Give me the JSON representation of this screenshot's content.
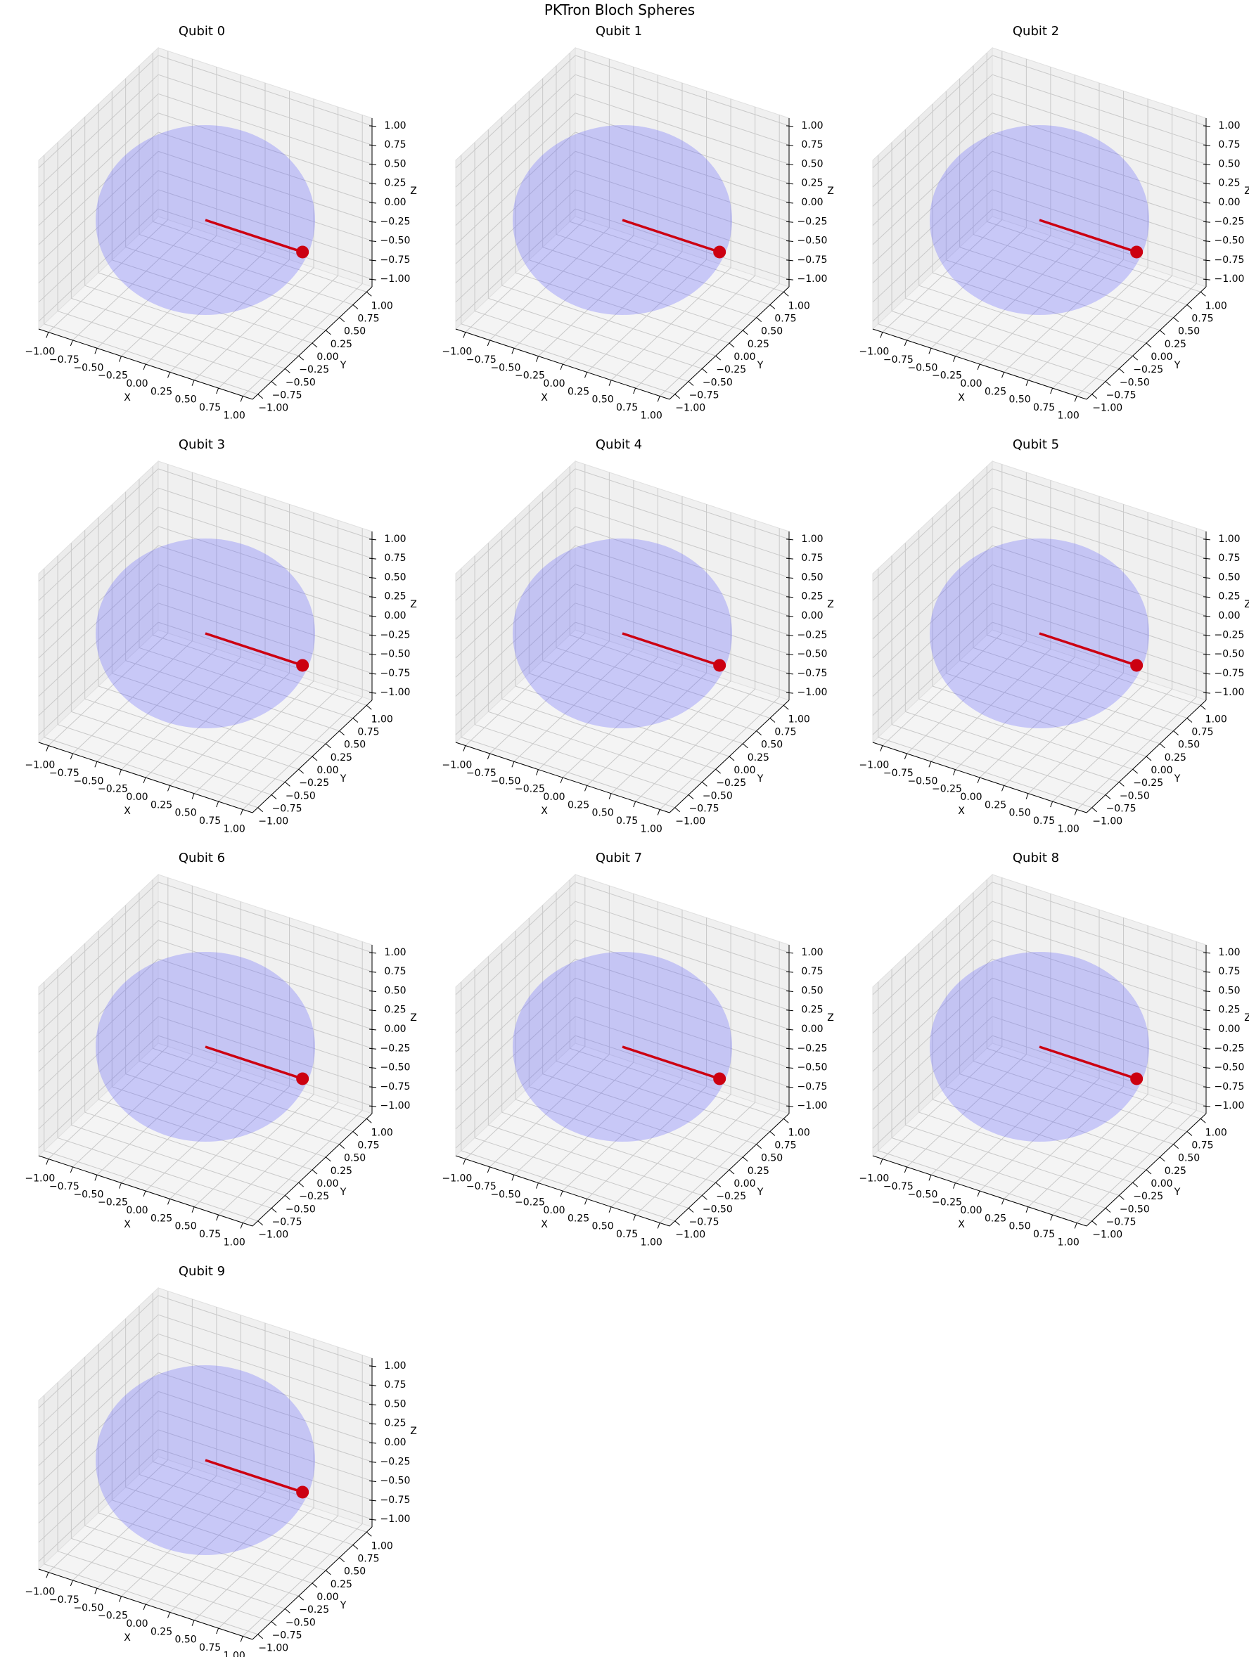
{
  "suptitle": "PKTron Bloch Spheres",
  "colors": {
    "suptitle": "#0a0a8c",
    "sphere": "#6464ff",
    "vector": "#cc0011",
    "grid": "#c9c9c9",
    "pane_left": "#ececec",
    "pane_back": "#f0f0f0",
    "pane_floor": "#f4f4f4"
  },
  "chart_data": [
    {
      "type": "scatter3d",
      "title": "Qubit 0",
      "vector": [
        1,
        0,
        0
      ],
      "xlabel": "X",
      "ylabel": "Y",
      "zlabel": "Z",
      "xlim": [
        -1.1,
        1.1
      ],
      "ylim": [
        -1.1,
        1.1
      ],
      "zlim": [
        -1.1,
        1.1
      ],
      "ticks": [
        -1,
        -0.75,
        -0.5,
        -0.25,
        0,
        0.25,
        0.5,
        0.75,
        1
      ],
      "tick_labels": [
        "−1.00",
        "−0.75",
        "−0.50",
        "−0.25",
        "0.00",
        "0.25",
        "0.50",
        "0.75",
        "1.00"
      ],
      "sphere_radius": 1
    },
    {
      "type": "scatter3d",
      "title": "Qubit 1",
      "vector": [
        1,
        0,
        0
      ],
      "xlabel": "X",
      "ylabel": "Y",
      "zlabel": "Z",
      "xlim": [
        -1.1,
        1.1
      ],
      "ylim": [
        -1.1,
        1.1
      ],
      "zlim": [
        -1.1,
        1.1
      ],
      "ticks": [
        -1,
        -0.75,
        -0.5,
        -0.25,
        0,
        0.25,
        0.5,
        0.75,
        1
      ],
      "tick_labels": [
        "−1.00",
        "−0.75",
        "−0.50",
        "−0.25",
        "0.00",
        "0.25",
        "0.50",
        "0.75",
        "1.00"
      ],
      "sphere_radius": 1
    },
    {
      "type": "scatter3d",
      "title": "Qubit 2",
      "vector": [
        1,
        0,
        0
      ],
      "xlabel": "X",
      "ylabel": "Y",
      "zlabel": "Z",
      "xlim": [
        -1.1,
        1.1
      ],
      "ylim": [
        -1.1,
        1.1
      ],
      "zlim": [
        -1.1,
        1.1
      ],
      "ticks": [
        -1,
        -0.75,
        -0.5,
        -0.25,
        0,
        0.25,
        0.5,
        0.75,
        1
      ],
      "tick_labels": [
        "−1.00",
        "−0.75",
        "−0.50",
        "−0.25",
        "0.00",
        "0.25",
        "0.50",
        "0.75",
        "1.00"
      ],
      "sphere_radius": 1
    },
    {
      "type": "scatter3d",
      "title": "Qubit 3",
      "vector": [
        1,
        0,
        0
      ],
      "xlabel": "X",
      "ylabel": "Y",
      "zlabel": "Z",
      "xlim": [
        -1.1,
        1.1
      ],
      "ylim": [
        -1.1,
        1.1
      ],
      "zlim": [
        -1.1,
        1.1
      ],
      "ticks": [
        -1,
        -0.75,
        -0.5,
        -0.25,
        0,
        0.25,
        0.5,
        0.75,
        1
      ],
      "tick_labels": [
        "−1.00",
        "−0.75",
        "−0.50",
        "−0.25",
        "0.00",
        "0.25",
        "0.50",
        "0.75",
        "1.00"
      ],
      "sphere_radius": 1
    },
    {
      "type": "scatter3d",
      "title": "Qubit 4",
      "vector": [
        1,
        0,
        0
      ],
      "xlabel": "X",
      "ylabel": "Y",
      "zlabel": "Z",
      "xlim": [
        -1.1,
        1.1
      ],
      "ylim": [
        -1.1,
        1.1
      ],
      "zlim": [
        -1.1,
        1.1
      ],
      "ticks": [
        -1,
        -0.75,
        -0.5,
        -0.25,
        0,
        0.25,
        0.5,
        0.75,
        1
      ],
      "tick_labels": [
        "−1.00",
        "−0.75",
        "−0.50",
        "−0.25",
        "0.00",
        "0.25",
        "0.50",
        "0.75",
        "1.00"
      ],
      "sphere_radius": 1
    },
    {
      "type": "scatter3d",
      "title": "Qubit 5",
      "vector": [
        1,
        0,
        0
      ],
      "xlabel": "X",
      "ylabel": "Y",
      "zlabel": "Z",
      "xlim": [
        -1.1,
        1.1
      ],
      "ylim": [
        -1.1,
        1.1
      ],
      "zlim": [
        -1.1,
        1.1
      ],
      "ticks": [
        -1,
        -0.75,
        -0.5,
        -0.25,
        0,
        0.25,
        0.5,
        0.75,
        1
      ],
      "tick_labels": [
        "−1.00",
        "−0.75",
        "−0.50",
        "−0.25",
        "0.00",
        "0.25",
        "0.50",
        "0.75",
        "1.00"
      ],
      "sphere_radius": 1
    },
    {
      "type": "scatter3d",
      "title": "Qubit 6",
      "vector": [
        1,
        0,
        0
      ],
      "xlabel": "X",
      "ylabel": "Y",
      "zlabel": "Z",
      "xlim": [
        -1.1,
        1.1
      ],
      "ylim": [
        -1.1,
        1.1
      ],
      "zlim": [
        -1.1,
        1.1
      ],
      "ticks": [
        -1,
        -0.75,
        -0.5,
        -0.25,
        0,
        0.25,
        0.5,
        0.75,
        1
      ],
      "tick_labels": [
        "−1.00",
        "−0.75",
        "−0.50",
        "−0.25",
        "0.00",
        "0.25",
        "0.50",
        "0.75",
        "1.00"
      ],
      "sphere_radius": 1
    },
    {
      "type": "scatter3d",
      "title": "Qubit 7",
      "vector": [
        1,
        0,
        0
      ],
      "xlabel": "X",
      "ylabel": "Y",
      "zlabel": "Z",
      "xlim": [
        -1.1,
        1.1
      ],
      "ylim": [
        -1.1,
        1.1
      ],
      "zlim": [
        -1.1,
        1.1
      ],
      "ticks": [
        -1,
        -0.75,
        -0.5,
        -0.25,
        0,
        0.25,
        0.5,
        0.75,
        1
      ],
      "tick_labels": [
        "−1.00",
        "−0.75",
        "−0.50",
        "−0.25",
        "0.00",
        "0.25",
        "0.50",
        "0.75",
        "1.00"
      ],
      "sphere_radius": 1
    },
    {
      "type": "scatter3d",
      "title": "Qubit 8",
      "vector": [
        1,
        0,
        0
      ],
      "xlabel": "X",
      "ylabel": "Y",
      "zlabel": "Z",
      "xlim": [
        -1.1,
        1.1
      ],
      "ylim": [
        -1.1,
        1.1
      ],
      "zlim": [
        -1.1,
        1.1
      ],
      "ticks": [
        -1,
        -0.75,
        -0.5,
        -0.25,
        0,
        0.25,
        0.5,
        0.75,
        1
      ],
      "tick_labels": [
        "−1.00",
        "−0.75",
        "−0.50",
        "−0.25",
        "0.00",
        "0.25",
        "0.50",
        "0.75",
        "1.00"
      ],
      "sphere_radius": 1
    },
    {
      "type": "scatter3d",
      "title": "Qubit 9",
      "vector": [
        1,
        0,
        0
      ],
      "xlabel": "X",
      "ylabel": "Y",
      "zlabel": "Z",
      "xlim": [
        -1.1,
        1.1
      ],
      "ylim": [
        -1.1,
        1.1
      ],
      "zlim": [
        -1.1,
        1.1
      ],
      "ticks": [
        -1,
        -0.75,
        -0.5,
        -0.25,
        0,
        0.25,
        0.5,
        0.75,
        1
      ],
      "tick_labels": [
        "−1.00",
        "−0.75",
        "−0.50",
        "−0.25",
        "0.00",
        "0.25",
        "0.50",
        "0.75",
        "1.00"
      ],
      "sphere_radius": 1
    }
  ]
}
